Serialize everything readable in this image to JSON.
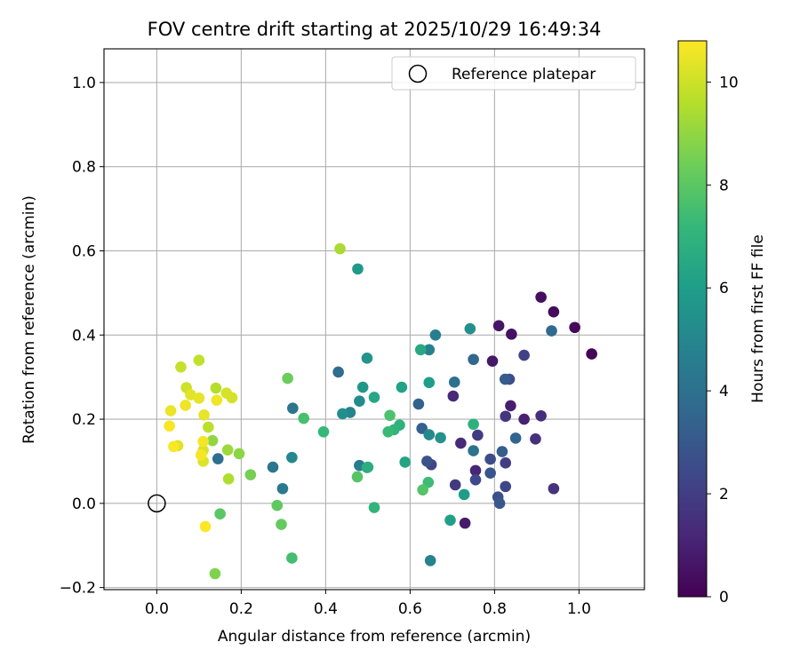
{
  "chart_data": {
    "type": "scatter",
    "title": "FOV centre drift starting at 2025/10/29 16:49:34",
    "xlabel": "Angular distance from reference (arcmin)",
    "ylabel": "Rotation from reference (arcmin)",
    "xlim": [
      -0.125,
      1.155
    ],
    "ylim": [
      -0.205,
      1.08
    ],
    "xticks": [
      0.0,
      0.2,
      0.4,
      0.6,
      0.8,
      1.0
    ],
    "xtick_labels": [
      "0.0",
      "0.2",
      "0.4",
      "0.6",
      "0.8",
      "1.0"
    ],
    "yticks": [
      -0.2,
      0.0,
      0.2,
      0.4,
      0.6,
      0.8,
      1.0
    ],
    "ytick_labels": [
      "−0.2",
      "0.0",
      "0.2",
      "0.4",
      "0.6",
      "0.8",
      "1.0"
    ],
    "grid": true,
    "legend": {
      "label": "Reference platepar",
      "location": "upper-right"
    },
    "reference": {
      "x": 0.0,
      "y": 0.0
    },
    "colorbar": {
      "label": "Hours from first FF file",
      "min": 0,
      "max": 10.8,
      "ticks": [
        0,
        2,
        4,
        6,
        8,
        10
      ],
      "tick_labels": [
        "0",
        "2",
        "4",
        "6",
        "8",
        "10"
      ],
      "colormap": "viridis"
    },
    "points": [
      {
        "x": 1.03,
        "y": 0.355,
        "t": 0.1
      },
      {
        "x": 0.99,
        "y": 0.418,
        "t": 0.2
      },
      {
        "x": 0.94,
        "y": 0.455,
        "t": 0.3
      },
      {
        "x": 0.91,
        "y": 0.49,
        "t": 0.4
      },
      {
        "x": 0.84,
        "y": 0.402,
        "t": 0.5
      },
      {
        "x": 0.81,
        "y": 0.422,
        "t": 0.6
      },
      {
        "x": 0.795,
        "y": 0.338,
        "t": 0.7
      },
      {
        "x": 0.73,
        "y": -0.047,
        "t": 0.8
      },
      {
        "x": 0.838,
        "y": 0.232,
        "t": 0.9
      },
      {
        "x": 0.87,
        "y": 0.2,
        "t": 1.0
      },
      {
        "x": 0.755,
        "y": 0.078,
        "t": 1.1
      },
      {
        "x": 0.702,
        "y": 0.255,
        "t": 1.2
      },
      {
        "x": 0.72,
        "y": 0.143,
        "t": 1.3
      },
      {
        "x": 0.91,
        "y": 0.208,
        "t": 1.4
      },
      {
        "x": 0.897,
        "y": 0.153,
        "t": 1.5
      },
      {
        "x": 0.94,
        "y": 0.035,
        "t": 1.6
      },
      {
        "x": 0.826,
        "y": 0.207,
        "t": 1.7
      },
      {
        "x": 0.707,
        "y": 0.044,
        "t": 1.8
      },
      {
        "x": 0.76,
        "y": 0.162,
        "t": 1.9
      },
      {
        "x": 0.826,
        "y": 0.096,
        "t": 2.0
      },
      {
        "x": 0.87,
        "y": 0.352,
        "t": 2.1
      },
      {
        "x": 0.65,
        "y": 0.092,
        "t": 2.2
      },
      {
        "x": 0.826,
        "y": 0.04,
        "t": 2.3
      },
      {
        "x": 0.755,
        "y": 0.056,
        "t": 2.4
      },
      {
        "x": 0.79,
        "y": 0.105,
        "t": 2.5
      },
      {
        "x": 0.835,
        "y": 0.295,
        "t": 2.6
      },
      {
        "x": 0.808,
        "y": 0.015,
        "t": 2.7
      },
      {
        "x": 0.64,
        "y": 0.1,
        "t": 2.8
      },
      {
        "x": 0.79,
        "y": 0.072,
        "t": 2.9
      },
      {
        "x": 0.812,
        "y": 0.0,
        "t": 3.0
      },
      {
        "x": 0.825,
        "y": 0.295,
        "t": 3.1
      },
      {
        "x": 0.818,
        "y": 0.123,
        "t": 3.2
      },
      {
        "x": 0.628,
        "y": 0.178,
        "t": 3.3
      },
      {
        "x": 0.62,
        "y": 0.236,
        "t": 3.4
      },
      {
        "x": 0.85,
        "y": 0.155,
        "t": 3.5
      },
      {
        "x": 0.75,
        "y": 0.342,
        "t": 3.6
      },
      {
        "x": 0.935,
        "y": 0.41,
        "t": 3.7
      },
      {
        "x": 0.43,
        "y": 0.312,
        "t": 3.8
      },
      {
        "x": 0.145,
        "y": 0.106,
        "t": 3.9
      },
      {
        "x": 0.705,
        "y": 0.288,
        "t": 4.0
      },
      {
        "x": 0.75,
        "y": 0.125,
        "t": 4.1
      },
      {
        "x": 0.322,
        "y": 0.226,
        "t": 4.2
      },
      {
        "x": 0.275,
        "y": 0.086,
        "t": 4.3
      },
      {
        "x": 0.298,
        "y": 0.035,
        "t": 4.4
      },
      {
        "x": 0.48,
        "y": 0.09,
        "t": 4.5
      },
      {
        "x": 0.66,
        "y": 0.4,
        "t": 4.6
      },
      {
        "x": 0.645,
        "y": 0.365,
        "t": 4.7
      },
      {
        "x": 0.648,
        "y": -0.136,
        "t": 4.8
      },
      {
        "x": 0.458,
        "y": 0.216,
        "t": 4.9
      },
      {
        "x": 0.32,
        "y": 0.109,
        "t": 5.0
      },
      {
        "x": 0.645,
        "y": 0.163,
        "t": 5.1
      },
      {
        "x": 0.48,
        "y": 0.243,
        "t": 5.2
      },
      {
        "x": 0.44,
        "y": 0.213,
        "t": 5.3
      },
      {
        "x": 0.742,
        "y": 0.415,
        "t": 5.4
      },
      {
        "x": 0.672,
        "y": 0.156,
        "t": 5.5
      },
      {
        "x": 0.498,
        "y": 0.345,
        "t": 5.6
      },
      {
        "x": 0.488,
        "y": 0.276,
        "t": 5.7
      },
      {
        "x": 0.476,
        "y": 0.557,
        "t": 5.8
      },
      {
        "x": 0.728,
        "y": 0.021,
        "t": 5.9
      },
      {
        "x": 0.645,
        "y": 0.287,
        "t": 6.0
      },
      {
        "x": 0.695,
        "y": -0.04,
        "t": 6.1
      },
      {
        "x": 0.58,
        "y": 0.276,
        "t": 6.2
      },
      {
        "x": 0.588,
        "y": 0.098,
        "t": 6.3
      },
      {
        "x": 0.515,
        "y": 0.252,
        "t": 6.4
      },
      {
        "x": 0.625,
        "y": 0.365,
        "t": 6.5
      },
      {
        "x": 0.5,
        "y": 0.086,
        "t": 6.6
      },
      {
        "x": 0.498,
        "y": 0.085,
        "t": 6.7
      },
      {
        "x": 0.75,
        "y": 0.188,
        "t": 6.8
      },
      {
        "x": 0.575,
        "y": 0.186,
        "t": 6.9
      },
      {
        "x": 0.515,
        "y": -0.01,
        "t": 7.0
      },
      {
        "x": 0.562,
        "y": 0.175,
        "t": 7.1
      },
      {
        "x": 0.395,
        "y": 0.17,
        "t": 7.2
      },
      {
        "x": 0.548,
        "y": 0.17,
        "t": 7.3
      },
      {
        "x": 0.643,
        "y": 0.05,
        "t": 7.4
      },
      {
        "x": 0.32,
        "y": -0.13,
        "t": 7.5
      },
      {
        "x": 0.348,
        "y": 0.202,
        "t": 7.6
      },
      {
        "x": 0.552,
        "y": 0.209,
        "t": 7.7
      },
      {
        "x": 0.63,
        "y": 0.032,
        "t": 7.8
      },
      {
        "x": 0.475,
        "y": 0.063,
        "t": 7.9
      },
      {
        "x": 0.15,
        "y": -0.025,
        "t": 8.0
      },
      {
        "x": 0.285,
        "y": -0.005,
        "t": 8.1
      },
      {
        "x": 0.295,
        "y": -0.05,
        "t": 8.2
      },
      {
        "x": 0.31,
        "y": 0.297,
        "t": 8.3
      },
      {
        "x": 0.222,
        "y": 0.068,
        "t": 8.5
      },
      {
        "x": 0.138,
        "y": -0.167,
        "t": 8.7
      },
      {
        "x": 0.195,
        "y": 0.118,
        "t": 8.9
      },
      {
        "x": 0.132,
        "y": 0.149,
        "t": 9.0
      },
      {
        "x": 0.168,
        "y": 0.127,
        "t": 9.2
      },
      {
        "x": 0.434,
        "y": 0.605,
        "t": 9.4
      },
      {
        "x": 0.17,
        "y": 0.058,
        "t": 9.5
      },
      {
        "x": 0.14,
        "y": 0.274,
        "t": 9.6
      },
      {
        "x": 0.122,
        "y": 0.181,
        "t": 9.7
      },
      {
        "x": 0.1,
        "y": 0.34,
        "t": 9.8
      },
      {
        "x": 0.057,
        "y": 0.324,
        "t": 9.9
      },
      {
        "x": 0.07,
        "y": 0.275,
        "t": 10.0
      },
      {
        "x": 0.178,
        "y": 0.251,
        "t": 10.1
      },
      {
        "x": 0.165,
        "y": 0.262,
        "t": 10.15
      },
      {
        "x": 0.11,
        "y": 0.126,
        "t": 10.2
      },
      {
        "x": 0.11,
        "y": 0.1,
        "t": 10.25
      },
      {
        "x": 0.05,
        "y": 0.137,
        "t": 10.3
      },
      {
        "x": 0.08,
        "y": 0.258,
        "t": 10.35
      },
      {
        "x": 0.1,
        "y": 0.25,
        "t": 10.4
      },
      {
        "x": 0.112,
        "y": 0.21,
        "t": 10.45
      },
      {
        "x": 0.033,
        "y": 0.22,
        "t": 10.5
      },
      {
        "x": 0.068,
        "y": 0.233,
        "t": 10.55
      },
      {
        "x": 0.142,
        "y": 0.245,
        "t": 10.6
      },
      {
        "x": 0.11,
        "y": 0.147,
        "t": 10.65
      },
      {
        "x": 0.105,
        "y": 0.115,
        "t": 10.7
      },
      {
        "x": 0.03,
        "y": 0.184,
        "t": 10.72
      },
      {
        "x": 0.04,
        "y": 0.135,
        "t": 10.75
      },
      {
        "x": 0.115,
        "y": -0.055,
        "t": 10.78
      }
    ]
  }
}
